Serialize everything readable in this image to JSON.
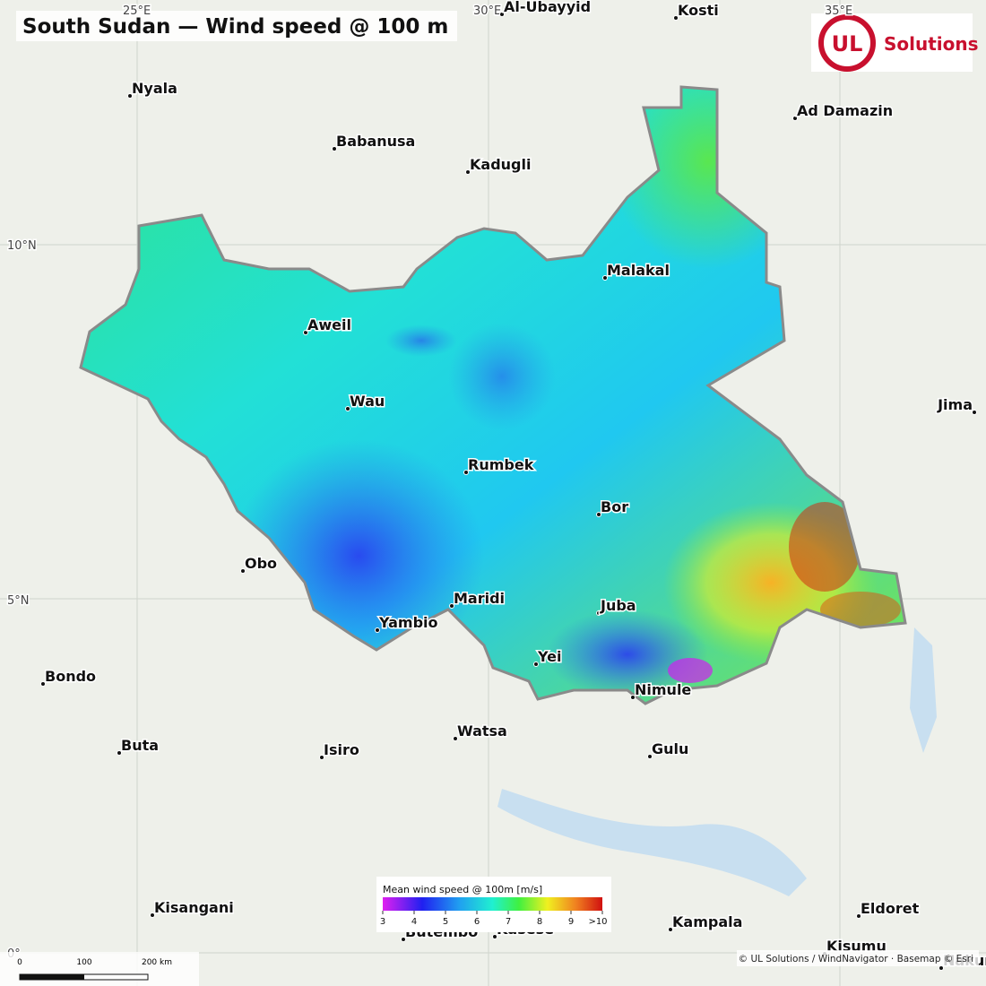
{
  "title": "South Sudan — Wind speed @ 100 m",
  "logo": {
    "mark": "UL",
    "text": "Solutions"
  },
  "graticule": {
    "longitudes": [
      "25°E",
      "30°E",
      "35°E"
    ],
    "latitudes": [
      "10°N",
      "5°N",
      "0°"
    ]
  },
  "cities": [
    "Al-Ubayyid",
    "Kosti",
    "Nyala",
    "Ad Damazin",
    "Babanusa",
    "Kadugli",
    "Malakal",
    "Aweil",
    "Wau",
    "Jima",
    "Rumbek",
    "Bor",
    "Obo",
    "Maridi",
    "Juba",
    "Yambio",
    "Yei",
    "Bondo",
    "Nimule",
    "Watsa",
    "Buta",
    "Isiro",
    "Gulu",
    "Kisangani",
    "Eldoret",
    "Kampala",
    "Butembo",
    "Kasese",
    "Kisumu",
    "Nakuru"
  ],
  "legend": {
    "title": "Mean wind speed @ 100m  [m/s]",
    "ticks": [
      3,
      4,
      5,
      6,
      7,
      8,
      9,
      {
        "value": 10,
        "label": ">10"
      }
    ]
  },
  "scale_bar": [
    "0",
    "100",
    "200 km"
  ],
  "attribution": "© UL Solutions / WindNavigator · Basemap © Esri"
}
